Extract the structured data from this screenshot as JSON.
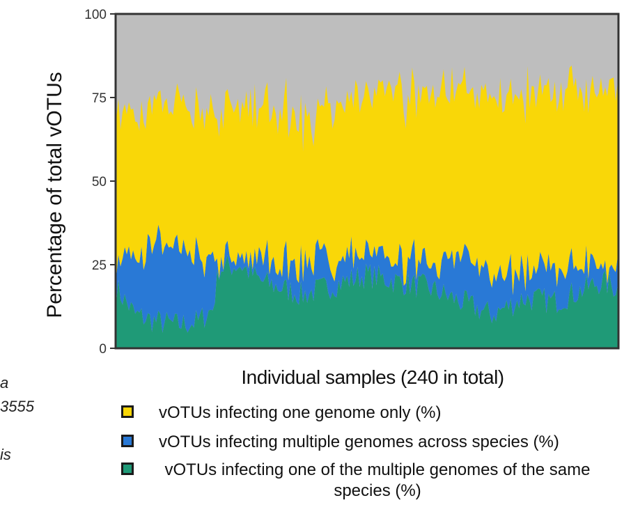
{
  "left_fragments": [
    "a",
    "3555",
    "is"
  ],
  "colors": {
    "one_genome": "#f9d708",
    "multi_across": "#2979d6",
    "multi_same": "#1f9a77",
    "remainder": "#bebebe",
    "frame": "#333333"
  },
  "legend": [
    {
      "key": "one_genome",
      "label": "vOTUs infecting one genome only (%)"
    },
    {
      "key": "multi_across",
      "label": "vOTUs infecting multiple genomes across species (%)"
    },
    {
      "key": "multi_same",
      "label": "vOTUs infecting one of the multiple genomes of the same species (%)"
    }
  ],
  "chart_data": {
    "type": "area",
    "stacking": "stacked",
    "title": "",
    "xlabel": "Individual samples (240 in total)",
    "ylabel": "Percentage of total vOTUs",
    "ylim": [
      0,
      100
    ],
    "yticks": [
      0,
      25,
      50,
      75,
      100
    ],
    "grid": false,
    "legend_position": "bottom",
    "x": {
      "start": 1,
      "end": 240,
      "step": 1,
      "description": "sample index"
    },
    "series": [
      {
        "name": "vOTUs infecting one of the multiple genomes of the same species (%)",
        "color": "#1f9a77",
        "keypoints": [
          [
            1,
            18
          ],
          [
            10,
            10
          ],
          [
            20,
            8
          ],
          [
            30,
            7
          ],
          [
            40,
            8
          ],
          [
            47,
            12
          ],
          [
            50,
            24
          ],
          [
            60,
            25
          ],
          [
            70,
            20
          ],
          [
            80,
            18
          ],
          [
            90,
            16
          ],
          [
            100,
            18
          ],
          [
            110,
            20
          ],
          [
            120,
            22
          ],
          [
            135,
            20
          ],
          [
            150,
            18
          ],
          [
            165,
            14
          ],
          [
            180,
            10
          ],
          [
            195,
            15
          ],
          [
            210,
            14
          ],
          [
            225,
            18
          ],
          [
            232,
            20
          ],
          [
            240,
            18
          ]
        ]
      },
      {
        "name": "vOTUs infecting multiple genomes across species (%)",
        "color": "#2979d6",
        "keypoints": [
          [
            1,
            10
          ],
          [
            10,
            18
          ],
          [
            20,
            22
          ],
          [
            30,
            22
          ],
          [
            40,
            18
          ],
          [
            47,
            14
          ],
          [
            50,
            2
          ],
          [
            60,
            2
          ],
          [
            70,
            6
          ],
          [
            80,
            8
          ],
          [
            90,
            10
          ],
          [
            100,
            8
          ],
          [
            110,
            8
          ],
          [
            120,
            6
          ],
          [
            135,
            6
          ],
          [
            150,
            8
          ],
          [
            165,
            12
          ],
          [
            180,
            14
          ],
          [
            195,
            8
          ],
          [
            210,
            10
          ],
          [
            225,
            6
          ],
          [
            232,
            5
          ],
          [
            240,
            6
          ]
        ]
      },
      {
        "name": "vOTUs infecting one genome only (%)",
        "color": "#f9d708",
        "keypoints": [
          [
            1,
            44
          ],
          [
            10,
            42
          ],
          [
            20,
            41
          ],
          [
            30,
            44
          ],
          [
            40,
            45
          ],
          [
            50,
            45
          ],
          [
            60,
            44
          ],
          [
            70,
            45
          ],
          [
            80,
            45
          ],
          [
            90,
            43
          ],
          [
            95,
            38
          ],
          [
            100,
            45
          ],
          [
            110,
            47
          ],
          [
            120,
            48
          ],
          [
            135,
            50
          ],
          [
            150,
            51
          ],
          [
            165,
            50
          ],
          [
            180,
            52
          ],
          [
            195,
            53
          ],
          [
            210,
            53
          ],
          [
            225,
            53
          ],
          [
            232,
            54
          ],
          [
            240,
            54
          ]
        ]
      }
    ],
    "remainder_series": {
      "label_printed": false,
      "color": "#bebebe",
      "note": "fills to 100"
    }
  }
}
